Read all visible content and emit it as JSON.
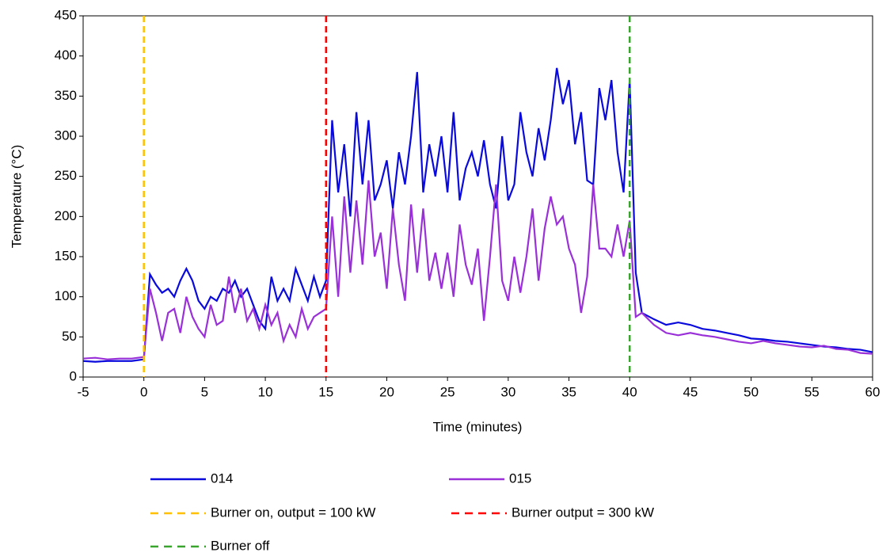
{
  "chart_data": {
    "type": "line",
    "xlabel": "Time (minutes)",
    "ylabel": "Temperature (°C)",
    "xlim": [
      -5,
      60
    ],
    "xticks": [
      -5,
      0,
      5,
      10,
      15,
      20,
      25,
      30,
      35,
      40,
      45,
      50,
      55,
      60
    ],
    "ylim": [
      0,
      450
    ],
    "yticks": [
      0,
      50,
      100,
      150,
      200,
      250,
      300,
      350,
      400,
      450
    ],
    "x": [
      -5,
      -4,
      -3,
      -2,
      -1,
      0,
      0.5,
      1,
      1.5,
      2,
      2.5,
      3,
      3.5,
      4,
      4.5,
      5,
      5.5,
      6,
      6.5,
      7,
      7.5,
      8,
      8.5,
      9,
      9.5,
      10,
      10.5,
      11,
      11.5,
      12,
      12.5,
      13,
      13.5,
      14,
      14.5,
      15,
      15.5,
      16,
      16.5,
      17,
      17.5,
      18,
      18.5,
      19,
      19.5,
      20,
      20.5,
      21,
      21.5,
      22,
      22.5,
      23,
      23.5,
      24,
      24.5,
      25,
      25.5,
      26,
      26.5,
      27,
      27.5,
      28,
      28.5,
      29,
      29.5,
      30,
      30.5,
      31,
      31.5,
      32,
      32.5,
      33,
      33.5,
      34,
      34.5,
      35,
      35.5,
      36,
      36.5,
      37,
      37.5,
      38,
      38.5,
      39,
      39.5,
      40,
      40.5,
      41,
      42,
      43,
      44,
      45,
      46,
      47,
      48,
      49,
      50,
      51,
      52,
      53,
      54,
      55,
      56,
      57,
      58,
      59,
      60
    ],
    "series": [
      {
        "name": "014",
        "color": "#0a0adc",
        "values": [
          20,
          19,
          20,
          20,
          20,
          22,
          128,
          115,
          105,
          110,
          100,
          120,
          135,
          120,
          95,
          85,
          100,
          95,
          110,
          105,
          120,
          100,
          110,
          90,
          70,
          60,
          125,
          95,
          110,
          95,
          135,
          115,
          95,
          125,
          100,
          120,
          320,
          230,
          290,
          200,
          330,
          240,
          320,
          220,
          240,
          270,
          210,
          280,
          240,
          300,
          380,
          230,
          290,
          250,
          300,
          230,
          330,
          220,
          260,
          280,
          250,
          295,
          240,
          210,
          300,
          220,
          240,
          330,
          280,
          250,
          310,
          270,
          320,
          385,
          340,
          370,
          290,
          330,
          245,
          240,
          360,
          320,
          370,
          280,
          230,
          370,
          130,
          80,
          72,
          65,
          68,
          65,
          60,
          58,
          55,
          52,
          48,
          47,
          45,
          44,
          42,
          40,
          38,
          37,
          35,
          34,
          31
        ]
      },
      {
        "name": "015",
        "color": "#9a30d8",
        "values": [
          23,
          24,
          22,
          23,
          23,
          25,
          110,
          80,
          45,
          80,
          85,
          55,
          100,
          75,
          60,
          50,
          90,
          65,
          70,
          125,
          80,
          110,
          70,
          85,
          60,
          90,
          65,
          80,
          45,
          65,
          50,
          85,
          60,
          75,
          80,
          85,
          200,
          100,
          225,
          130,
          220,
          140,
          245,
          150,
          180,
          110,
          210,
          140,
          95,
          215,
          130,
          210,
          120,
          155,
          110,
          155,
          100,
          190,
          140,
          115,
          160,
          70,
          150,
          240,
          120,
          95,
          150,
          105,
          150,
          210,
          120,
          185,
          225,
          190,
          200,
          160,
          140,
          80,
          125,
          240,
          160,
          160,
          150,
          190,
          150,
          195,
          75,
          80,
          65,
          55,
          52,
          55,
          52,
          50,
          47,
          44,
          42,
          45,
          42,
          40,
          38,
          37,
          39,
          35,
          34,
          30,
          29
        ]
      }
    ],
    "reference_lines": [
      {
        "name": "Burner on, output = 100 kW",
        "color": "#ffc000",
        "x": 0
      },
      {
        "name": "Burner output = 300 kW",
        "color": "#ff0000",
        "x": 15
      },
      {
        "name": "Burner off",
        "color": "#3aa52e",
        "x": 40
      }
    ]
  }
}
